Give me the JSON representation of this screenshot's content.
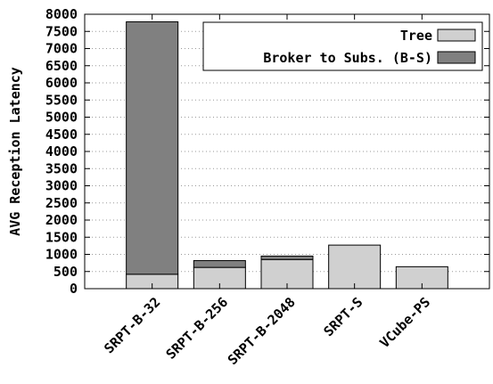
{
  "chart_data": {
    "type": "bar",
    "stacked": true,
    "title": "",
    "xlabel": "",
    "ylabel": "AVG Reception Latency",
    "ylim": [
      0,
      8000
    ],
    "yticks": [
      0,
      500,
      1000,
      1500,
      2000,
      2500,
      3000,
      3500,
      4000,
      4500,
      5000,
      5500,
      6000,
      6500,
      7000,
      7500,
      8000
    ],
    "grid": true,
    "legend_position": "top-right",
    "categories": [
      "SRPT-B-32",
      "SRPT-B-256",
      "SRPT-B-2048",
      "SRPT-S",
      "VCube-PS"
    ],
    "series": [
      {
        "name": "Tree",
        "color": "#d0d0d0",
        "values": [
          420,
          620,
          850,
          1270,
          640
        ]
      },
      {
        "name": "Broker to Subs. (B-S)",
        "color": "#808080",
        "values": [
          7360,
          200,
          100,
          0,
          0
        ]
      }
    ]
  }
}
